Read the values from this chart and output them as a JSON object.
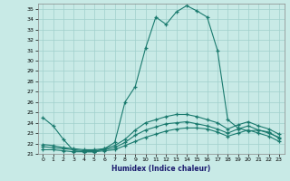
{
  "xlabel": "Humidex (Indice chaleur)",
  "bg_color": "#c8eae6",
  "grid_color": "#a0d0cc",
  "line_color": "#1a7a6e",
  "xlim": [
    -0.5,
    23.5
  ],
  "ylim": [
    21,
    35.5
  ],
  "xticks": [
    0,
    1,
    2,
    3,
    4,
    5,
    6,
    7,
    8,
    9,
    10,
    11,
    12,
    13,
    14,
    15,
    16,
    17,
    18,
    19,
    20,
    21,
    22,
    23
  ],
  "yticks": [
    21,
    22,
    23,
    24,
    25,
    26,
    27,
    28,
    29,
    30,
    31,
    32,
    33,
    34,
    35
  ],
  "curve1_x": [
    0,
    1,
    2,
    3,
    4,
    5,
    6,
    7,
    8,
    9,
    10,
    11,
    12,
    13,
    14,
    15,
    16,
    17,
    18,
    19,
    20,
    21,
    22,
    23
  ],
  "curve1_y": [
    24.5,
    23.7,
    22.4,
    21.3,
    21.2,
    21.2,
    21.5,
    22.1,
    26.0,
    27.5,
    31.2,
    34.2,
    33.5,
    34.7,
    35.3,
    34.8,
    34.2,
    31.0,
    24.3,
    23.5,
    23.2,
    23.3,
    23.0,
    22.6
  ],
  "curve2_x": [
    0,
    1,
    2,
    3,
    4,
    5,
    6,
    7,
    8,
    9,
    10,
    11,
    12,
    13,
    14,
    15,
    16,
    17,
    18,
    19,
    20,
    21,
    22,
    23
  ],
  "curve2_y": [
    21.4,
    21.4,
    21.3,
    21.2,
    21.2,
    21.2,
    21.3,
    21.4,
    21.8,
    22.2,
    22.6,
    22.9,
    23.2,
    23.4,
    23.5,
    23.5,
    23.4,
    23.1,
    22.7,
    23.0,
    23.3,
    23.0,
    22.7,
    22.2
  ],
  "curve3_x": [
    0,
    1,
    2,
    3,
    4,
    5,
    6,
    7,
    8,
    9,
    10,
    11,
    12,
    13,
    14,
    15,
    16,
    17,
    18,
    19,
    20,
    21,
    22,
    23
  ],
  "curve3_y": [
    21.7,
    21.6,
    21.5,
    21.4,
    21.3,
    21.3,
    21.4,
    21.6,
    22.1,
    22.8,
    23.3,
    23.6,
    23.9,
    24.0,
    24.1,
    23.9,
    23.7,
    23.4,
    23.0,
    23.4,
    23.7,
    23.3,
    23.1,
    22.5
  ],
  "curve4_x": [
    0,
    1,
    2,
    3,
    4,
    5,
    6,
    7,
    8,
    9,
    10,
    11,
    12,
    13,
    14,
    15,
    16,
    17,
    18,
    19,
    20,
    21,
    22,
    23
  ],
  "curve4_y": [
    21.9,
    21.8,
    21.6,
    21.5,
    21.4,
    21.4,
    21.5,
    21.8,
    22.4,
    23.3,
    24.0,
    24.3,
    24.6,
    24.8,
    24.8,
    24.6,
    24.3,
    24.0,
    23.4,
    23.8,
    24.1,
    23.7,
    23.4,
    22.9
  ]
}
